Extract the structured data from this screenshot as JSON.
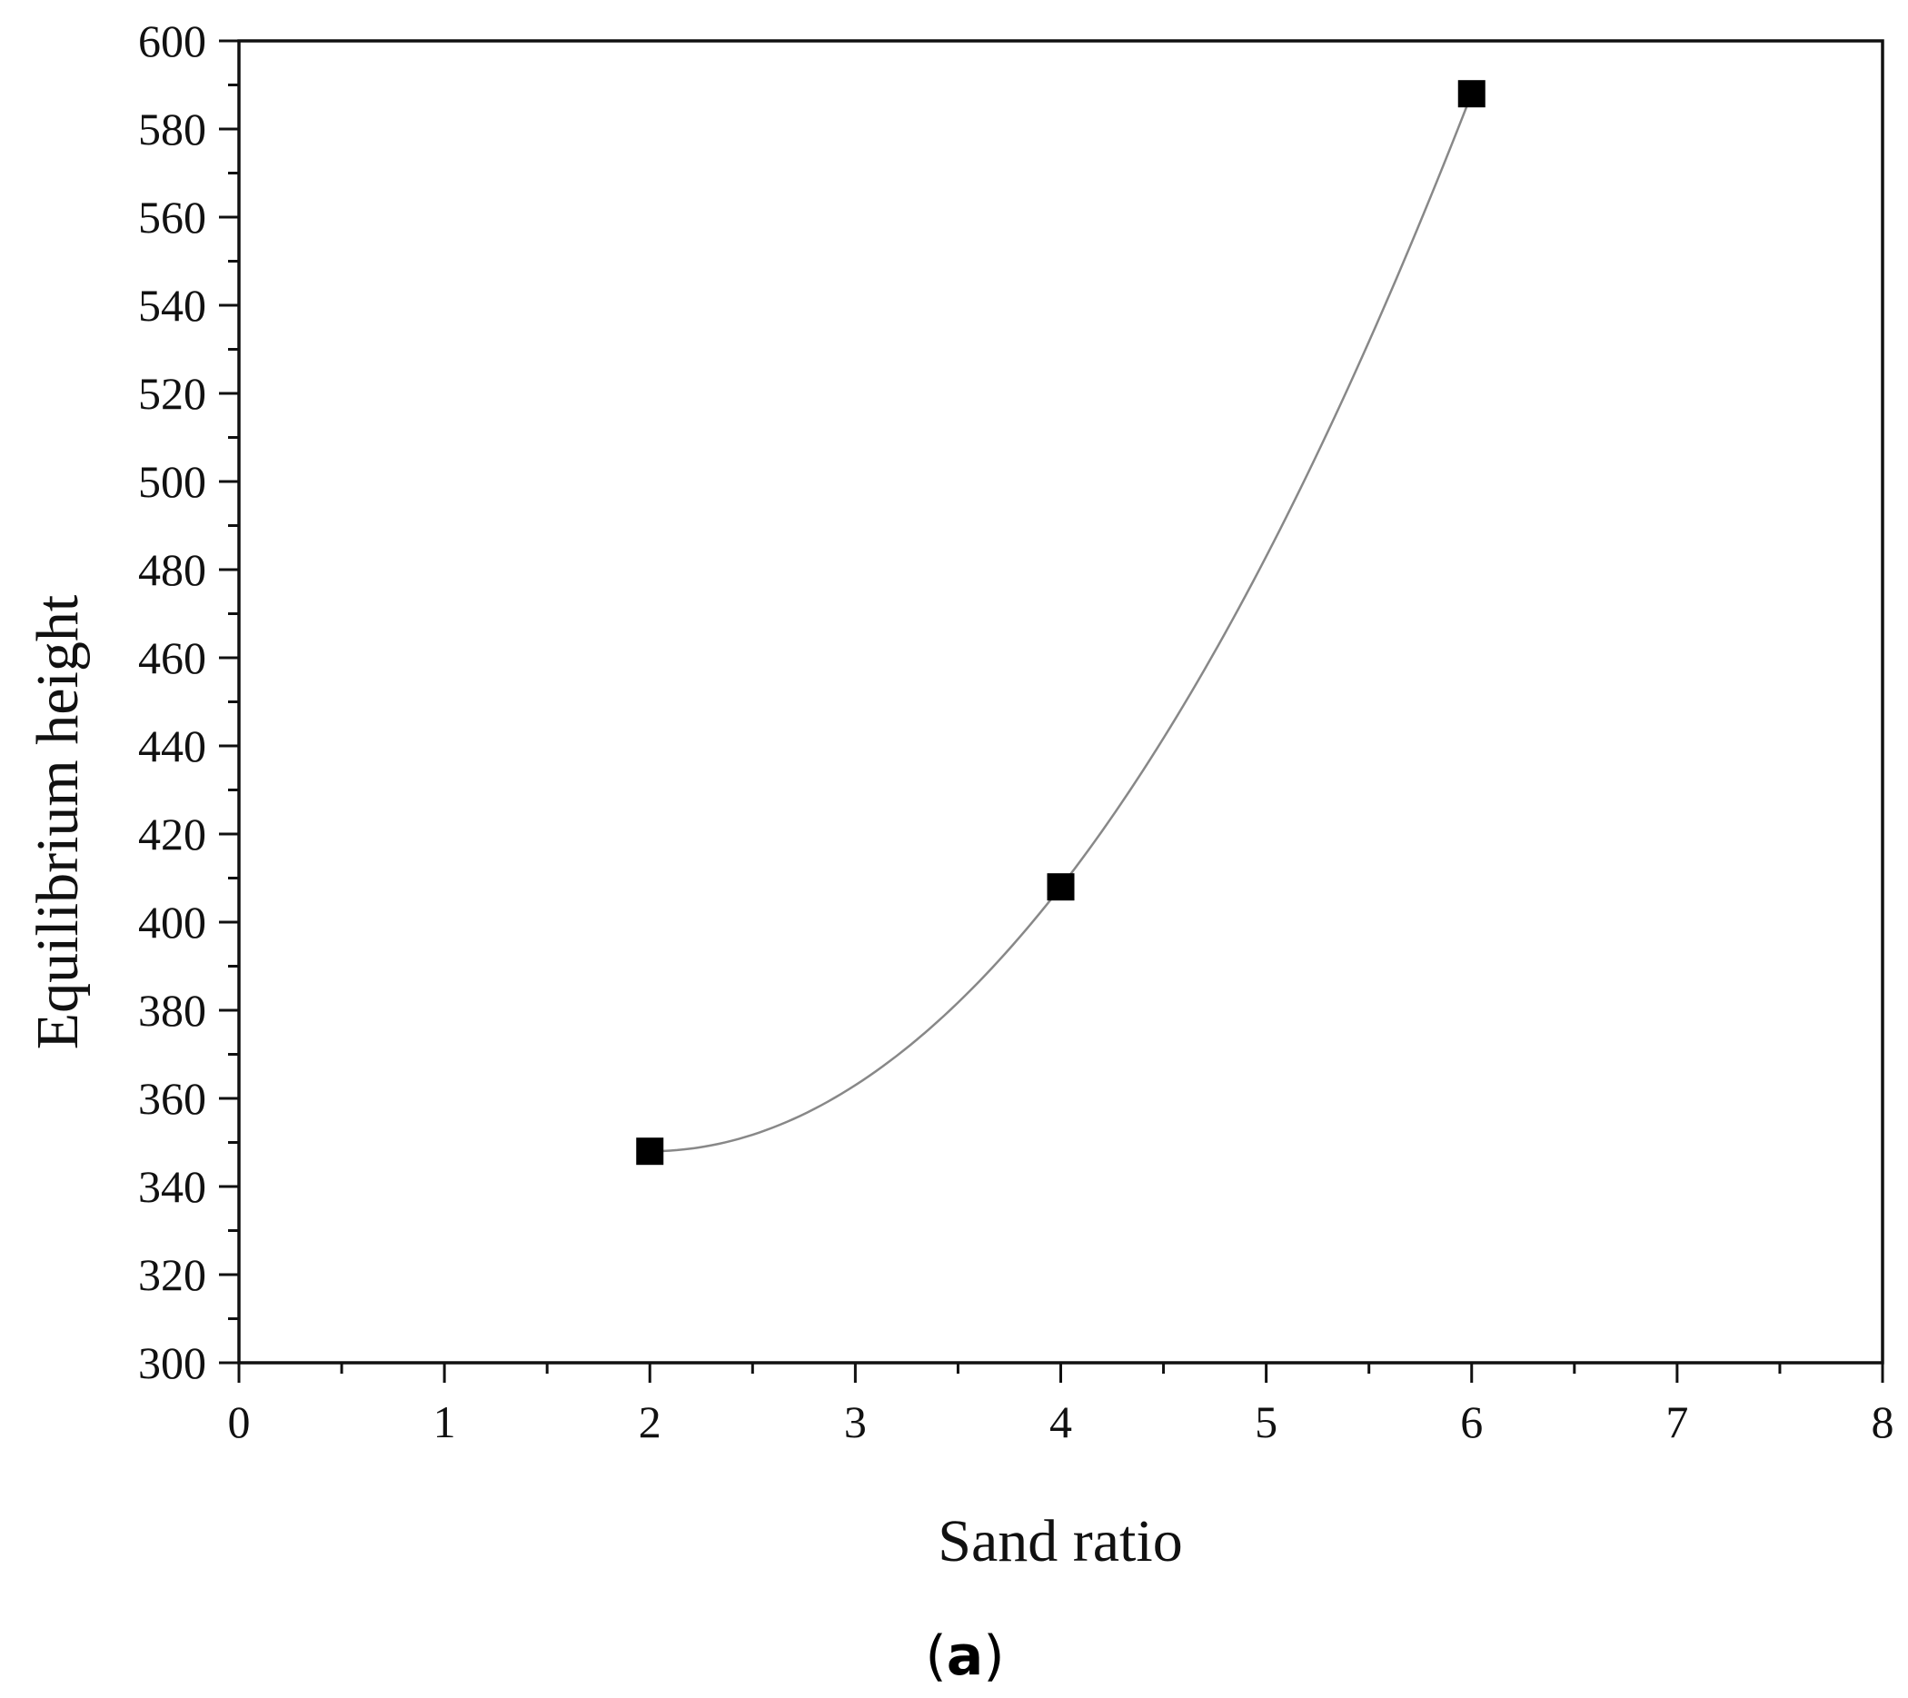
{
  "chart_data": {
    "type": "scatter",
    "title": "",
    "xlabel": "Sand ratio",
    "ylabel": "Equilibrium height",
    "xlim": [
      0,
      8
    ],
    "ylim": [
      300,
      600
    ],
    "x_ticks": [
      0,
      1,
      2,
      3,
      4,
      5,
      6,
      7,
      8
    ],
    "y_ticks": [
      300,
      320,
      340,
      360,
      380,
      400,
      420,
      440,
      460,
      480,
      500,
      520,
      540,
      560,
      580,
      600
    ],
    "grid": false,
    "legend": "none",
    "series": [
      {
        "marker": "square",
        "color": "#000000",
        "line": "smooth",
        "line_color": "#888888",
        "points": [
          {
            "x": 2,
            "y": 348
          },
          {
            "x": 4,
            "y": 408
          },
          {
            "x": 6,
            "y": 588
          }
        ]
      }
    ],
    "panel_label": {
      "open": "(",
      "letter": "a",
      "close": ")"
    }
  }
}
